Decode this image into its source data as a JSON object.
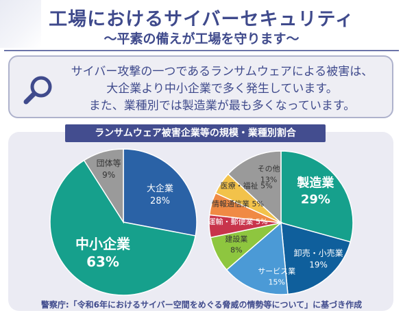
{
  "header": {
    "title": "工場におけるサイバーセキュリティ",
    "subtitle": "～平素の備えが工場を守ります～"
  },
  "callout": {
    "icon": "magnifier-icon",
    "lines": [
      "サイバー攻撃の一つであるランサムウェアによる被害は、",
      "大企業より中小企業で多く発生しています。",
      "また、業種別では製造業が最も多くなっています。"
    ]
  },
  "panel": {
    "header": "ランサムウェア被害企業等の規模・業種別割合"
  },
  "source": "警察庁:「令和6年におけるサイバー空間をめぐる脅威の情勢等について」に基づき作成",
  "colors": {
    "title": "#3f4a8c",
    "panel_header_bg": "#434d8f",
    "large_company": "#2a62a6",
    "small_medium": "#16a08c",
    "other_orgs": "#9a9a9a"
  },
  "chart_data": [
    {
      "type": "pie",
      "title": "",
      "categories": [
        "大企業",
        "中小企業",
        "団体等"
      ],
      "values": [
        28,
        63,
        9
      ],
      "unit": "%",
      "colors": [
        "#2a62a6",
        "#16a08c",
        "#9a9a9a"
      ]
    },
    {
      "type": "pie",
      "title": "",
      "categories": [
        "製造業",
        "卸売・小売業",
        "サービス業",
        "建設業",
        "運輸・郵便業",
        "情報通信業",
        "医療・福祉",
        "その他"
      ],
      "values": [
        29,
        19,
        15,
        8,
        5,
        5,
        5,
        13
      ],
      "unit": "%",
      "colors": [
        "#16a08c",
        "#0f5f9c",
        "#4b9ad6",
        "#8ec63f",
        "#c8344b",
        "#f08a44",
        "#f2c24a",
        "#9a9a9a"
      ]
    }
  ]
}
